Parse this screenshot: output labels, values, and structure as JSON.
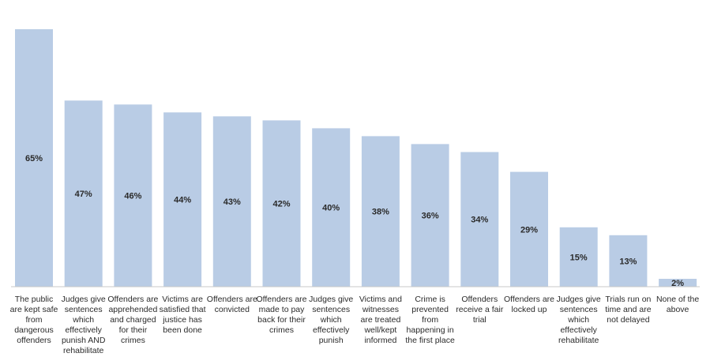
{
  "chart_data": {
    "type": "bar",
    "title": "",
    "xlabel": "",
    "ylabel": "",
    "ylim": [
      0,
      65
    ],
    "grid": false,
    "bar_color": "#b9cce5",
    "value_format": "percent",
    "categories": [
      [
        "The public",
        "are kept safe",
        "from",
        "dangerous",
        "offenders"
      ],
      [
        "Judges give",
        "sentences",
        "which",
        "effectively",
        "punish AND",
        "rehabilitate"
      ],
      [
        "Offenders are",
        "apprehended",
        "and charged",
        "for their",
        "crimes"
      ],
      [
        "Victims are",
        "satisfied that",
        "justice has",
        "been done"
      ],
      [
        "Offenders are",
        "convicted"
      ],
      [
        "Offenders are",
        "made to pay",
        "back for their",
        "crimes"
      ],
      [
        "Judges give",
        "sentences",
        "which",
        "effectively",
        "punish"
      ],
      [
        "Victims and",
        "witnesses",
        "are treated",
        "well/kept",
        "informed"
      ],
      [
        "Crime is",
        "prevented",
        "from",
        "happening in",
        "the first place"
      ],
      [
        "Offenders",
        "receive a fair",
        "trial"
      ],
      [
        "Offenders are",
        "locked up"
      ],
      [
        "Judges give",
        "sentences",
        "which",
        "effectively",
        "rehabilitate"
      ],
      [
        "Trials run on",
        "time and are",
        "not delayed"
      ],
      [
        "None of the",
        "above"
      ]
    ],
    "value_labels": [
      "65%",
      "47%",
      "46%",
      "44%",
      "43%",
      "42%",
      "40%",
      "38%",
      "36%",
      "34%",
      "29%",
      "15%",
      "13%",
      "2%"
    ],
    "values": [
      65,
      47,
      46,
      44,
      43,
      42,
      40,
      38,
      36,
      34,
      29,
      15,
      13,
      2
    ]
  }
}
